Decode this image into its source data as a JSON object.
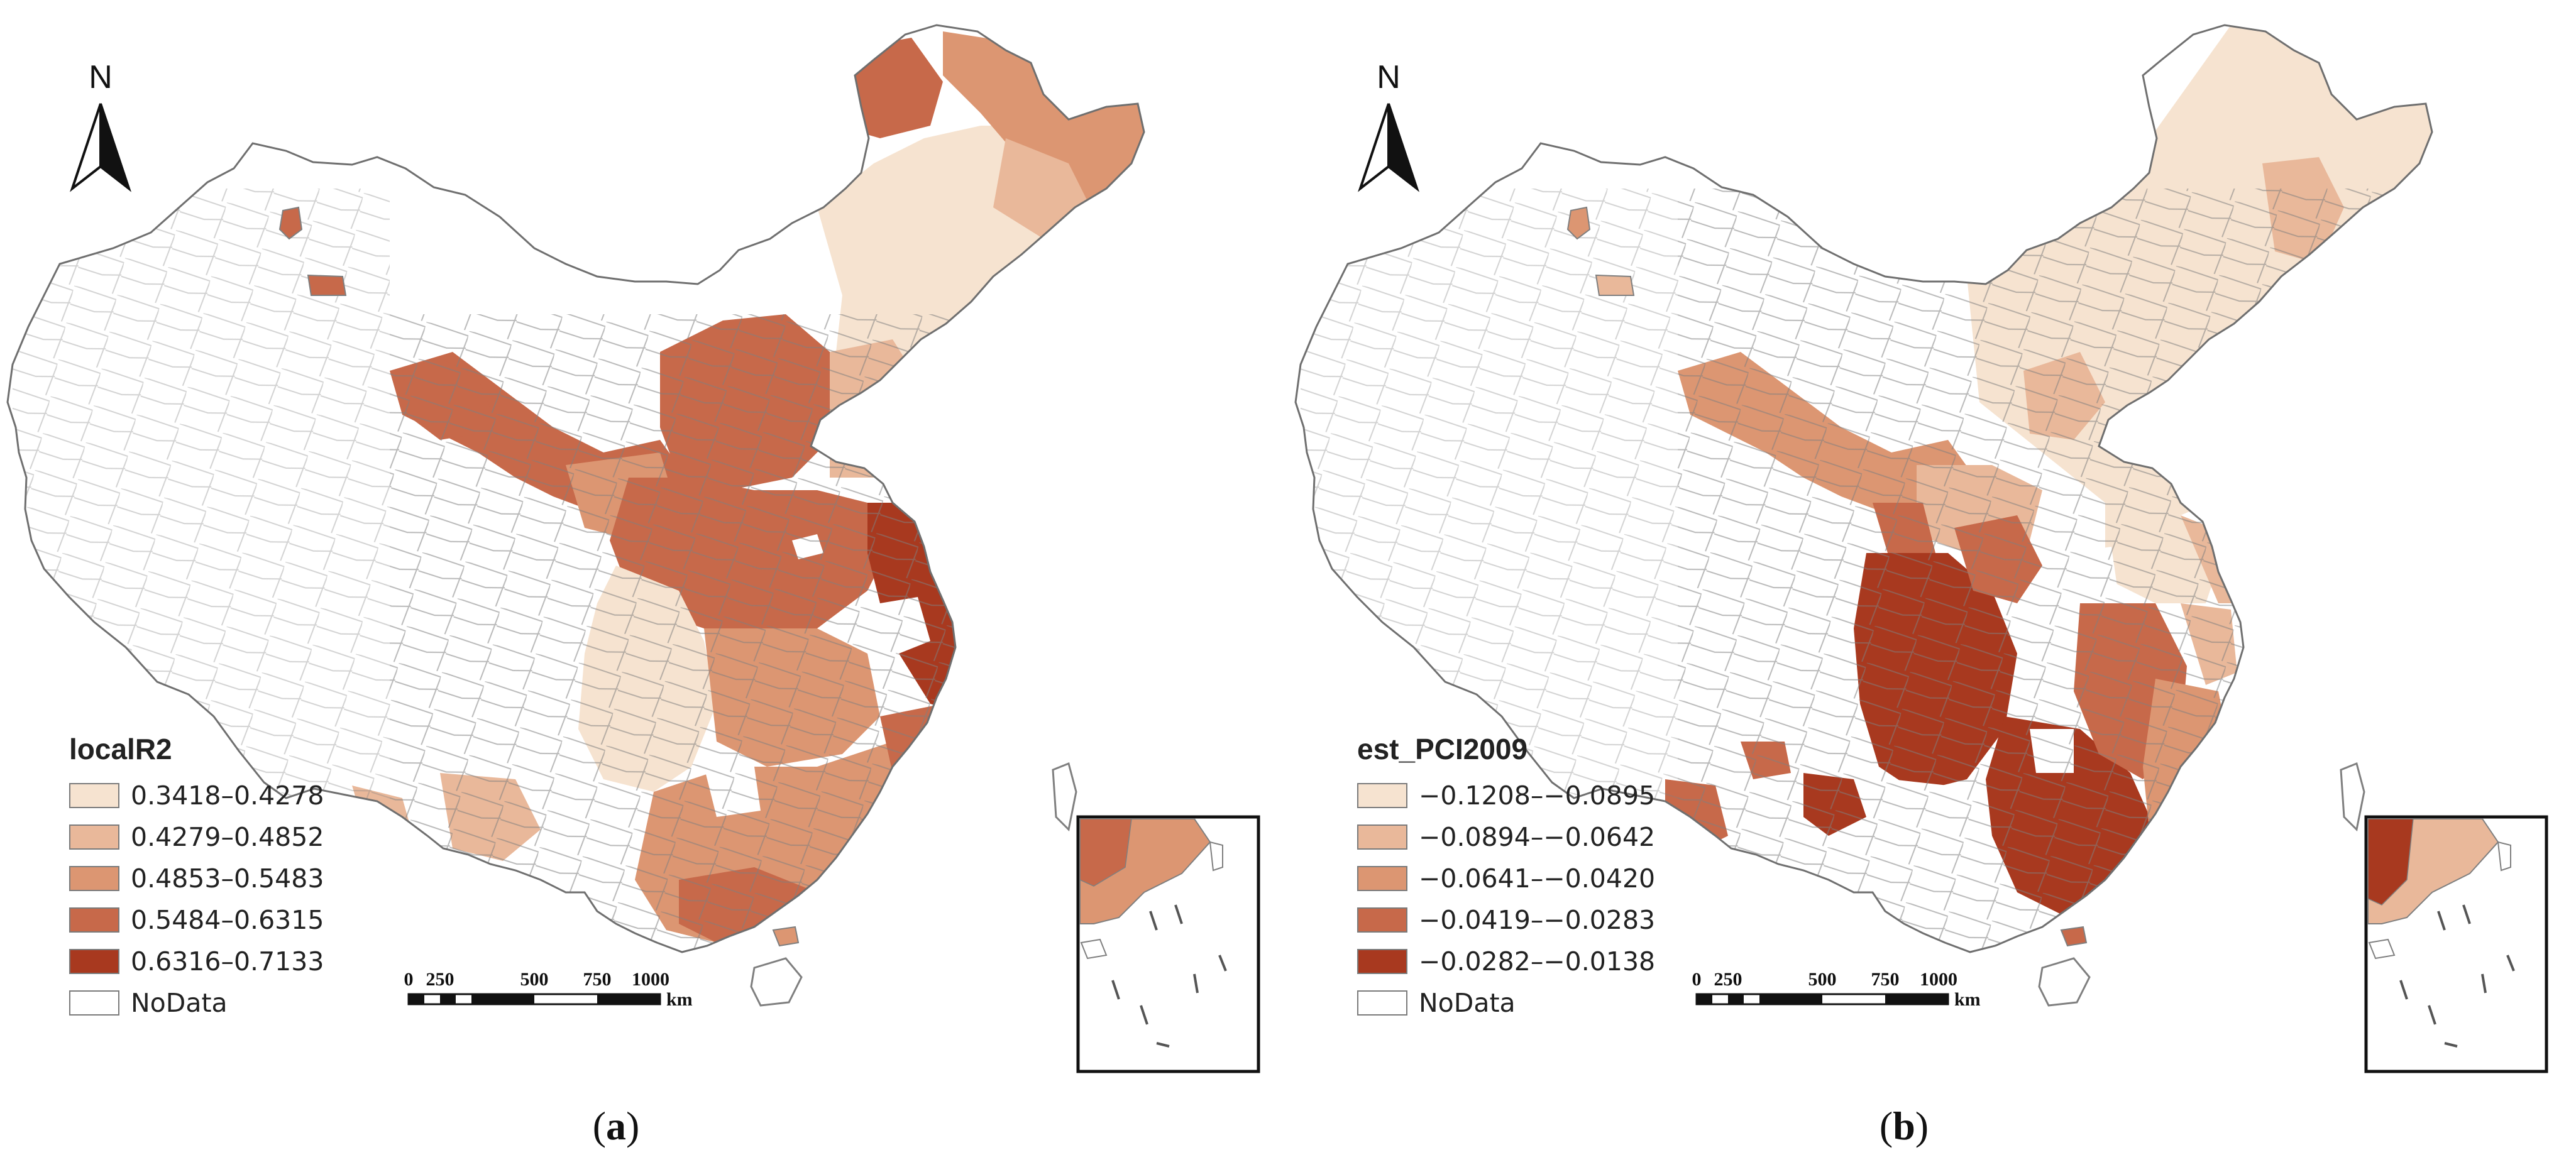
{
  "panels": [
    {
      "id": "a",
      "caption_label": "a",
      "legend": {
        "title": "localR2",
        "classes": [
          {
            "label": "0.3418–0.4278",
            "color": "#f6e3d0"
          },
          {
            "label": "0.4279–0.4852",
            "color": "#e9b89a"
          },
          {
            "label": "0.4853–0.5483",
            "color": "#dc9672"
          },
          {
            "label": "0.5484–0.6315",
            "color": "#c7694a"
          },
          {
            "label": "0.6316–0.7133",
            "color": "#a8391f"
          },
          {
            "label": "NoData",
            "color": "#ffffff"
          }
        ]
      },
      "north_label": "N",
      "scale_bar": {
        "ticks": [
          "0",
          "250",
          "500",
          "750",
          "1000"
        ],
        "unit": "km"
      }
    },
    {
      "id": "b",
      "caption_label": "b",
      "legend": {
        "title": "est_PCI2009",
        "classes": [
          {
            "label": "−0.1208–−0.0895",
            "color": "#f6e3d0"
          },
          {
            "label": "−0.0894–−0.0642",
            "color": "#e9b89a"
          },
          {
            "label": "−0.0641–−0.0420",
            "color": "#dc9672"
          },
          {
            "label": "−0.0419–−0.0283",
            "color": "#c7694a"
          },
          {
            "label": "−0.0282–−0.0138",
            "color": "#a8391f"
          },
          {
            "label": "NoData",
            "color": "#ffffff"
          }
        ]
      },
      "north_label": "N",
      "scale_bar": {
        "ticks": [
          "0",
          "250",
          "500",
          "750",
          "1000"
        ],
        "unit": "km"
      }
    }
  ],
  "colors": {
    "boundary": "#7f7f7f",
    "class1": "#f6e3d0",
    "class2": "#e9b89a",
    "class3": "#dc9672",
    "class4": "#c7694a",
    "class5": "#a8391f",
    "nodata": "#ffffff"
  }
}
